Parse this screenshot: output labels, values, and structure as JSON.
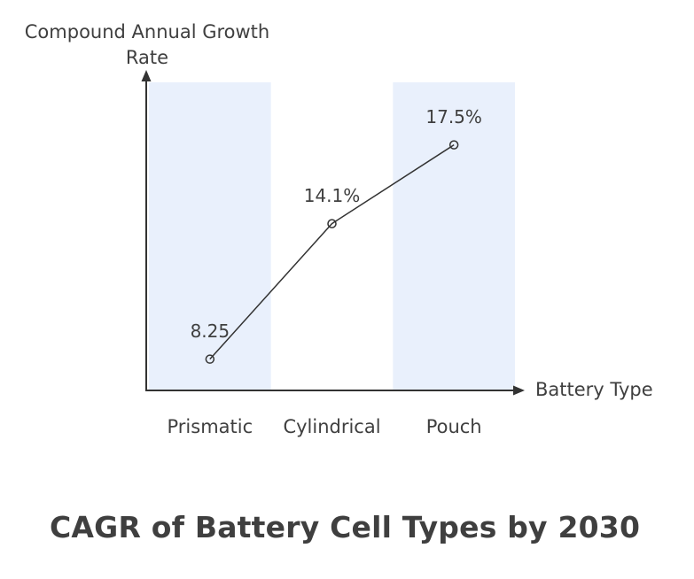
{
  "chart_data": {
    "type": "line",
    "title": "CAGR of Battery Cell Types by 2030",
    "categories": [
      "Prismatic",
      "Cylindrical",
      "Pouch"
    ],
    "values": [
      8.25,
      14.1,
      17.5
    ],
    "point_labels": [
      "8.25",
      "14.1%",
      "17.5%"
    ],
    "xlabel": "Battery Type",
    "ylabel": "Compound Annual Growth Rate",
    "ylabel_lines": [
      "Compound Annual Growth",
      "Rate"
    ],
    "ylim": [
      6.9,
      20.2
    ],
    "grid": false,
    "legend": false,
    "marker": "open-circle",
    "highlight_band_indices": [
      0,
      2
    ],
    "colors": {
      "band": "#E9F0FC",
      "line": "#333333",
      "text": "#3F3F3F",
      "background": "#FFFFFF"
    }
  }
}
